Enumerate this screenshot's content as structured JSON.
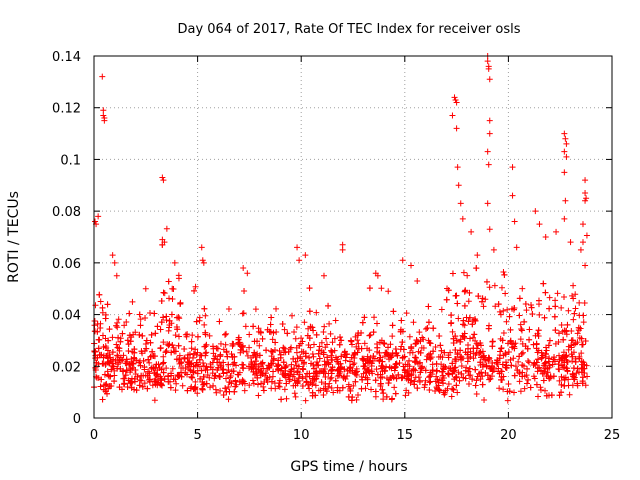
{
  "chart_data": {
    "type": "scatter",
    "title": "Day 064 of 2017, Rate Of TEC Index for receiver osls",
    "xlabel": "GPS time / hours",
    "ylabel": "ROTI / TECUs",
    "xlim": [
      0,
      25
    ],
    "ylim": [
      0,
      0.14
    ],
    "xticks": [
      "0",
      "5",
      "10",
      "15",
      "20",
      "25"
    ],
    "xtick_values": [
      0,
      5,
      10,
      15,
      20,
      25
    ],
    "yticks": [
      "0",
      "0.02",
      "0.04",
      "0.06",
      "0.08",
      "0.1",
      "0.12",
      "0.14"
    ],
    "ytick_values": [
      0,
      0.02,
      0.04,
      0.06,
      0.08,
      0.1,
      0.12,
      0.14
    ],
    "grid": true,
    "marker": "+",
    "color": "#ff0000",
    "data_range_x": [
      0,
      23.8
    ],
    "bulk_range_y": [
      0.005,
      0.04
    ],
    "spike_points": [
      {
        "x": 0.05,
        "y": 0.076
      },
      {
        "x": 0.1,
        "y": 0.075
      },
      {
        "x": 0.2,
        "y": 0.078
      },
      {
        "x": 0.4,
        "y": 0.132
      },
      {
        "x": 0.45,
        "y": 0.119
      },
      {
        "x": 0.45,
        "y": 0.117
      },
      {
        "x": 0.5,
        "y": 0.116
      },
      {
        "x": 0.5,
        "y": 0.115
      },
      {
        "x": 0.9,
        "y": 0.063
      },
      {
        "x": 1.0,
        "y": 0.06
      },
      {
        "x": 1.1,
        "y": 0.055
      },
      {
        "x": 2.5,
        "y": 0.05
      },
      {
        "x": 3.3,
        "y": 0.093
      },
      {
        "x": 3.35,
        "y": 0.092
      },
      {
        "x": 3.3,
        "y": 0.069
      },
      {
        "x": 3.4,
        "y": 0.068
      },
      {
        "x": 3.9,
        "y": 0.06
      },
      {
        "x": 4.1,
        "y": 0.054
      },
      {
        "x": 5.2,
        "y": 0.066
      },
      {
        "x": 5.25,
        "y": 0.061
      },
      {
        "x": 5.3,
        "y": 0.06
      },
      {
        "x": 7.2,
        "y": 0.058
      },
      {
        "x": 7.4,
        "y": 0.056
      },
      {
        "x": 9.8,
        "y": 0.066
      },
      {
        "x": 9.9,
        "y": 0.061
      },
      {
        "x": 10.2,
        "y": 0.063
      },
      {
        "x": 11.1,
        "y": 0.055
      },
      {
        "x": 12.0,
        "y": 0.067
      },
      {
        "x": 12.0,
        "y": 0.065
      },
      {
        "x": 13.6,
        "y": 0.056
      },
      {
        "x": 13.7,
        "y": 0.055
      },
      {
        "x": 14.2,
        "y": 0.049
      },
      {
        "x": 14.9,
        "y": 0.061
      },
      {
        "x": 15.3,
        "y": 0.059
      },
      {
        "x": 15.6,
        "y": 0.053
      },
      {
        "x": 17.4,
        "y": 0.124
      },
      {
        "x": 17.45,
        "y": 0.123
      },
      {
        "x": 17.5,
        "y": 0.122
      },
      {
        "x": 17.5,
        "y": 0.112
      },
      {
        "x": 17.3,
        "y": 0.117
      },
      {
        "x": 17.55,
        "y": 0.097
      },
      {
        "x": 17.6,
        "y": 0.09
      },
      {
        "x": 17.7,
        "y": 0.083
      },
      {
        "x": 17.8,
        "y": 0.077
      },
      {
        "x": 18.2,
        "y": 0.072
      },
      {
        "x": 18.5,
        "y": 0.063
      },
      {
        "x": 19.0,
        "y": 0.14
      },
      {
        "x": 19.0,
        "y": 0.138
      },
      {
        "x": 19.05,
        "y": 0.136
      },
      {
        "x": 19.05,
        "y": 0.135
      },
      {
        "x": 19.1,
        "y": 0.131
      },
      {
        "x": 19.1,
        "y": 0.115
      },
      {
        "x": 19.1,
        "y": 0.11
      },
      {
        "x": 19.0,
        "y": 0.103
      },
      {
        "x": 19.05,
        "y": 0.098
      },
      {
        "x": 19.0,
        "y": 0.083
      },
      {
        "x": 19.1,
        "y": 0.073
      },
      {
        "x": 19.3,
        "y": 0.065
      },
      {
        "x": 20.2,
        "y": 0.097
      },
      {
        "x": 20.2,
        "y": 0.086
      },
      {
        "x": 20.3,
        "y": 0.076
      },
      {
        "x": 20.4,
        "y": 0.066
      },
      {
        "x": 21.3,
        "y": 0.08
      },
      {
        "x": 21.5,
        "y": 0.075
      },
      {
        "x": 21.8,
        "y": 0.07
      },
      {
        "x": 22.3,
        "y": 0.072
      },
      {
        "x": 22.7,
        "y": 0.11
      },
      {
        "x": 22.75,
        "y": 0.108
      },
      {
        "x": 22.8,
        "y": 0.106
      },
      {
        "x": 22.7,
        "y": 0.103
      },
      {
        "x": 22.8,
        "y": 0.101
      },
      {
        "x": 22.7,
        "y": 0.095
      },
      {
        "x": 22.75,
        "y": 0.084
      },
      {
        "x": 22.7,
        "y": 0.077
      },
      {
        "x": 23.0,
        "y": 0.068
      },
      {
        "x": 23.7,
        "y": 0.092
      },
      {
        "x": 23.7,
        "y": 0.087
      },
      {
        "x": 23.75,
        "y": 0.085
      },
      {
        "x": 23.7,
        "y": 0.084
      },
      {
        "x": 23.6,
        "y": 0.075
      },
      {
        "x": 23.6,
        "y": 0.068
      },
      {
        "x": 23.5,
        "y": 0.065
      },
      {
        "x": 23.7,
        "y": 0.059
      }
    ]
  }
}
